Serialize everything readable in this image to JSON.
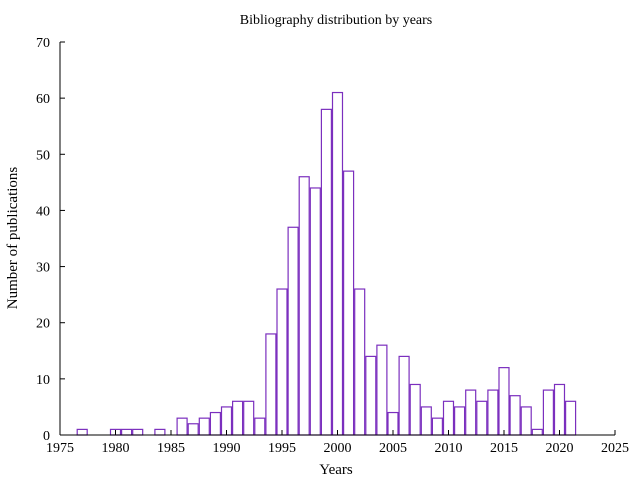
{
  "chart_data": {
    "type": "bar",
    "title": "Bibliography distribution by years",
    "xlabel": "Years",
    "ylabel": "Number of publications",
    "xlim": [
      1975,
      2025
    ],
    "ylim": [
      0,
      70
    ],
    "xticks": [
      1975,
      1980,
      1985,
      1990,
      1995,
      2000,
      2005,
      2010,
      2015,
      2020,
      2025
    ],
    "yticks": [
      0,
      10,
      20,
      30,
      40,
      50,
      60,
      70
    ],
    "bar_color": "#7b2fbe",
    "grid": false,
    "legend": "none",
    "series": [
      {
        "x": [
          1977,
          1980,
          1981,
          1982,
          1984,
          1986,
          1987,
          1988,
          1989,
          1990,
          1991,
          1992,
          1993,
          1994,
          1995,
          1996,
          1997,
          1998,
          1999,
          2000,
          2001,
          2002,
          2003,
          2004,
          2005,
          2006,
          2007,
          2008,
          2009,
          2010,
          2011,
          2012,
          2013,
          2014,
          2015,
          2016,
          2017,
          2018,
          2019,
          2020,
          2021
        ],
        "values": [
          1,
          1,
          1,
          1,
          1,
          3,
          2,
          3,
          4,
          5,
          6,
          6,
          3,
          18,
          26,
          37,
          46,
          44,
          58,
          61,
          47,
          26,
          14,
          16,
          4,
          14,
          9,
          5,
          3,
          6,
          5,
          8,
          6,
          8,
          12,
          7,
          5,
          1,
          8,
          9,
          6
        ]
      }
    ]
  }
}
